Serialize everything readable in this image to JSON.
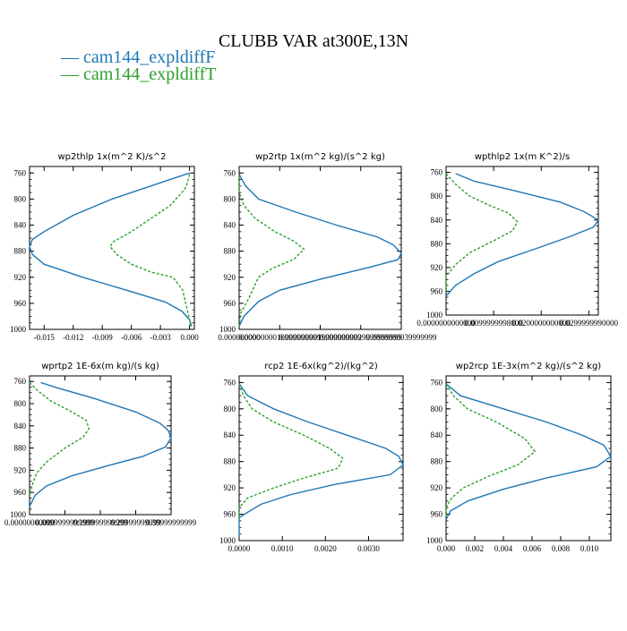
{
  "title": "CLUBB VAR at300E,13N",
  "legend": [
    {
      "label": "— cam144_expldiffF",
      "color": "#1f77b4"
    },
    {
      "label": "— cam144_expldiffT",
      "color": "#2ca02c"
    }
  ],
  "chart_data": [
    {
      "type": "line",
      "title": "wp2thlp   1x(m^2 K)/s^2",
      "xlabel": "",
      "ylabel": "",
      "xlim": [
        -0.0165,
        0.0005
      ],
      "ylim": [
        1000,
        750
      ],
      "xticks": [
        -0.015,
        -0.012,
        -0.009,
        -0.006,
        -0.003,
        0.0
      ],
      "xtick_labels": [
        "-0.015",
        "-0.012",
        "-0.009",
        "-0.006",
        "-0.003",
        "0.000"
      ],
      "yticks": [
        760,
        800,
        840,
        880,
        920,
        960,
        1000
      ],
      "series": [
        {
          "name": "cam144_expldiffF",
          "color": "#1f77b4",
          "dash": "",
          "x": [
            0.0,
            -0.003,
            -0.008,
            -0.012,
            -0.015,
            -0.0162,
            -0.0165,
            -0.0162,
            -0.015,
            -0.011,
            -0.006,
            -0.0025,
            -0.0008,
            0.0,
            0.0002
          ],
          "y": [
            760,
            775,
            800,
            825,
            850,
            862,
            873,
            885,
            900,
            920,
            942,
            958,
            972,
            985,
            995
          ]
        },
        {
          "name": "cam144_expldiffT",
          "color": "#2ca02c",
          "dash": "3,2",
          "x": [
            0.0,
            -0.0002,
            -0.0005,
            -0.002,
            -0.004,
            -0.006,
            -0.0078,
            -0.0082,
            -0.0075,
            -0.006,
            -0.004,
            -0.0017,
            -0.0007,
            -0.0004,
            0.0,
            0.0001
          ],
          "y": [
            762,
            775,
            785,
            810,
            830,
            850,
            865,
            873,
            885,
            900,
            912,
            920,
            940,
            960,
            985,
            998
          ]
        }
      ]
    },
    {
      "type": "line",
      "title": "wp2rtp   1x(m^2 kg)/(s^2 kg)",
      "xlabel": "",
      "ylabel": "",
      "xlim": [
        0,
        1
      ],
      "ylim": [
        1000,
        750
      ],
      "xticks": [
        0,
        0.25,
        0.5,
        0.75,
        1
      ],
      "xtick_labels": [
        "0.000000000",
        "0.0000000010999999999",
        "0.0000000019999999999",
        "0.0000000029999999999",
        "0.0000000039999999"
      ],
      "yticks": [
        760,
        800,
        840,
        880,
        920,
        960,
        1000
      ],
      "series": [
        {
          "name": "cam144_expldiffF",
          "color": "#1f77b4",
          "dash": "",
          "x": [
            0.0,
            0.04,
            0.12,
            0.35,
            0.6,
            0.85,
            0.95,
            1.0,
            0.98,
            0.8,
            0.5,
            0.25,
            0.12,
            0.03,
            0.0
          ],
          "y": [
            762,
            780,
            800,
            820,
            840,
            858,
            870,
            883,
            893,
            905,
            923,
            940,
            957,
            980,
            995
          ]
        },
        {
          "name": "cam144_expldiffT",
          "color": "#2ca02c",
          "dash": "3,2",
          "x": [
            0.0,
            0.0,
            0.03,
            0.1,
            0.22,
            0.34,
            0.4,
            0.34,
            0.2,
            0.12,
            0.1,
            0.06,
            0.01,
            0.0
          ],
          "y": [
            765,
            790,
            810,
            830,
            850,
            865,
            877,
            892,
            907,
            920,
            930,
            952,
            975,
            995
          ]
        }
      ]
    },
    {
      "type": "line",
      "title": "wpthlp2   1x(m K^2)/s",
      "xlabel": "",
      "ylabel": "",
      "xlim": [
        0,
        0.032
      ],
      "ylim": [
        1000,
        750
      ],
      "xticks": [
        0.0,
        0.01,
        0.02,
        0.03
      ],
      "xtick_labels": [
        "0.0000000000000",
        "0.0099999998000",
        "0.0200000000000",
        "0.0299999990000"
      ],
      "yticks": [
        760,
        800,
        840,
        880,
        920,
        960,
        1000
      ],
      "series": [
        {
          "name": "cam144_expldiffF",
          "color": "#1f77b4",
          "dash": "",
          "x": [
            0.002,
            0.006,
            0.014,
            0.024,
            0.029,
            0.032,
            0.031,
            0.026,
            0.019,
            0.011,
            0.006,
            0.002,
            0.0
          ],
          "y": [
            762,
            775,
            790,
            810,
            826,
            840,
            852,
            868,
            888,
            910,
            930,
            950,
            968
          ]
        },
        {
          "name": "cam144_expldiffT",
          "color": "#2ca02c",
          "dash": "3,2",
          "x": [
            0.0,
            0.002,
            0.005,
            0.009,
            0.013,
            0.015,
            0.014,
            0.01,
            0.005,
            0.002,
            0.0,
            0.0
          ],
          "y": [
            762,
            780,
            800,
            815,
            828,
            843,
            858,
            875,
            895,
            915,
            935,
            960
          ]
        }
      ]
    },
    {
      "type": "line",
      "title": "wprtp2   1E-6x(m kg)/(s kg)",
      "xlabel": "",
      "ylabel": "",
      "xlim": [
        0,
        1
      ],
      "ylim": [
        1000,
        750
      ],
      "xticks": [
        0,
        0.25,
        0.5,
        0.75,
        1
      ],
      "xtick_labels": [
        "0.00000000000",
        "0.0999999999999",
        "0.199999999999",
        "0.29999999999",
        "0.39999999999"
      ],
      "yticks": [
        760,
        800,
        840,
        880,
        920,
        960,
        1000
      ],
      "series": [
        {
          "name": "cam144_expldiffF",
          "color": "#1f77b4",
          "dash": "",
          "x": [
            0.08,
            0.2,
            0.45,
            0.75,
            0.92,
            0.98,
            1.0,
            0.96,
            0.8,
            0.55,
            0.3,
            0.12,
            0.04,
            0.0
          ],
          "y": [
            762,
            772,
            790,
            815,
            835,
            848,
            862,
            878,
            895,
            912,
            930,
            948,
            965,
            985
          ]
        },
        {
          "name": "cam144_expldiffT",
          "color": "#2ca02c",
          "dash": "3,2",
          "x": [
            0.0,
            0.05,
            0.15,
            0.3,
            0.4,
            0.42,
            0.38,
            0.25,
            0.12,
            0.05,
            0.02,
            0.0
          ],
          "y": [
            762,
            775,
            795,
            815,
            830,
            845,
            860,
            880,
            905,
            925,
            945,
            965
          ]
        }
      ]
    },
    {
      "type": "line",
      "title": "rcp2   1E-6x(kg^2)/(kg^2)",
      "xlabel": "",
      "ylabel": "",
      "xlim": [
        0,
        0.0038
      ],
      "ylim": [
        1000,
        750
      ],
      "xticks": [
        0.0,
        0.001,
        0.002,
        0.003
      ],
      "xtick_labels": [
        "0.0000",
        "0.0010",
        "0.0020",
        "0.0030"
      ],
      "yticks": [
        760,
        800,
        840,
        880,
        920,
        960,
        1000
      ],
      "series": [
        {
          "name": "cam144_expldiffF",
          "color": "#1f77b4",
          "dash": "",
          "x": [
            0.0,
            0.0002,
            0.0008,
            0.0016,
            0.0025,
            0.0034,
            0.0037,
            0.0038,
            0.0035,
            0.0022,
            0.0012,
            0.0005,
            0.0,
            0.0
          ],
          "y": [
            762,
            780,
            800,
            820,
            840,
            860,
            872,
            885,
            900,
            915,
            930,
            945,
            965,
            995
          ]
        },
        {
          "name": "cam144_expldiffT",
          "color": "#2ca02c",
          "dash": "3,2",
          "x": [
            0.0,
            0.0001,
            0.0003,
            0.0008,
            0.0015,
            0.0021,
            0.0024,
            0.0023,
            0.0015,
            0.0008,
            0.0002,
            0.0,
            0.0
          ],
          "y": [
            762,
            780,
            800,
            820,
            840,
            860,
            875,
            890,
            905,
            920,
            935,
            950,
            970
          ]
        }
      ]
    },
    {
      "type": "line",
      "title": "wp2rcp   1E-3x(m^2 kg)/(s^2 kg)",
      "xlabel": "",
      "ylabel": "",
      "xlim": [
        0,
        0.0115
      ],
      "ylim": [
        1000,
        750
      ],
      "xticks": [
        0.0,
        0.002,
        0.004,
        0.006,
        0.008,
        0.01
      ],
      "xtick_labels": [
        "0.000",
        "0.002",
        "0.004",
        "0.006",
        "0.008",
        "0.010"
      ],
      "yticks": [
        760,
        800,
        840,
        880,
        920,
        960,
        1000
      ],
      "series": [
        {
          "name": "cam144_expldiffF",
          "color": "#1f77b4",
          "dash": "",
          "x": [
            0.0,
            0.001,
            0.004,
            0.007,
            0.0095,
            0.011,
            0.0115,
            0.0105,
            0.007,
            0.004,
            0.0015,
            0.0003,
            0.0
          ],
          "y": [
            762,
            780,
            800,
            820,
            840,
            855,
            872,
            888,
            905,
            922,
            940,
            955,
            968
          ]
        },
        {
          "name": "cam144_expldiffT",
          "color": "#2ca02c",
          "dash": "3,2",
          "x": [
            0.0,
            0.0005,
            0.0015,
            0.0035,
            0.0055,
            0.0062,
            0.005,
            0.003,
            0.0012,
            0.0004,
            0.0,
            0.0
          ],
          "y": [
            762,
            780,
            800,
            820,
            845,
            865,
            885,
            902,
            920,
            935,
            950,
            965
          ]
        }
      ]
    }
  ]
}
